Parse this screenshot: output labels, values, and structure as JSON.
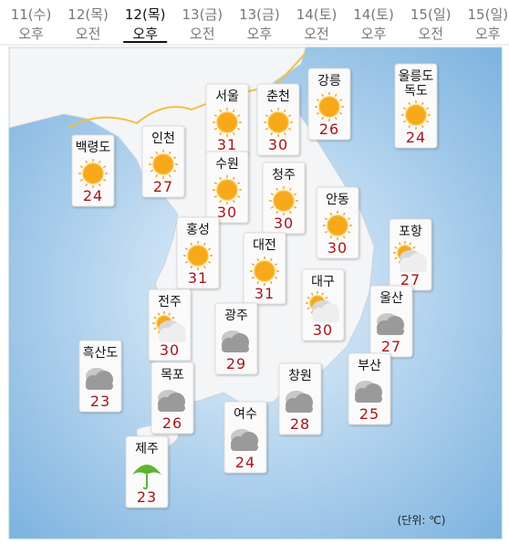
{
  "tabs": [
    {
      "date": "11(수)",
      "time": "오후"
    },
    {
      "date": "12(목)",
      "time": "오전"
    },
    {
      "date": "12(목)",
      "time": "오후"
    },
    {
      "date": "13(금)",
      "time": "오전"
    },
    {
      "date": "13(금)",
      "time": "오후"
    },
    {
      "date": "14(토)",
      "time": "오전"
    },
    {
      "date": "14(토)",
      "time": "오후"
    },
    {
      "date": "15(일)",
      "time": "오전"
    },
    {
      "date": "15(일)",
      "time": "오후"
    }
  ],
  "cities": [
    {
      "name": "서울",
      "temp": 31,
      "icon": "sun"
    },
    {
      "name": "춘천",
      "temp": 30,
      "icon": "sun"
    },
    {
      "name": "강릉",
      "temp": 26,
      "icon": "sun"
    },
    {
      "name": "울릉도\n독도",
      "temp": 24,
      "icon": "sun"
    },
    {
      "name": "백령도",
      "temp": 24,
      "icon": "sun"
    },
    {
      "name": "인천",
      "temp": 27,
      "icon": "sun"
    },
    {
      "name": "수원",
      "temp": 30,
      "icon": "sun"
    },
    {
      "name": "청주",
      "temp": 30,
      "icon": "sun"
    },
    {
      "name": "안동",
      "temp": 30,
      "icon": "sun"
    },
    {
      "name": "홍성",
      "temp": 31,
      "icon": "sun"
    },
    {
      "name": "대전",
      "temp": 31,
      "icon": "sun"
    },
    {
      "name": "포항",
      "temp": 27,
      "icon": "partly"
    },
    {
      "name": "대구",
      "temp": 30,
      "icon": "partly"
    },
    {
      "name": "전주",
      "temp": 30,
      "icon": "partly"
    },
    {
      "name": "광주",
      "temp": 29,
      "icon": "cloud"
    },
    {
      "name": "울산",
      "temp": 27,
      "icon": "cloud"
    },
    {
      "name": "흑산도",
      "temp": 23,
      "icon": "cloud"
    },
    {
      "name": "목포",
      "temp": 26,
      "icon": "cloud"
    },
    {
      "name": "창원",
      "temp": 28,
      "icon": "cloud"
    },
    {
      "name": "부산",
      "temp": 25,
      "icon": "cloud"
    },
    {
      "name": "여수",
      "temp": 24,
      "icon": "cloud"
    },
    {
      "name": "제주",
      "temp": 23,
      "icon": "rain"
    }
  ],
  "unit": "(단위: ℃)"
}
